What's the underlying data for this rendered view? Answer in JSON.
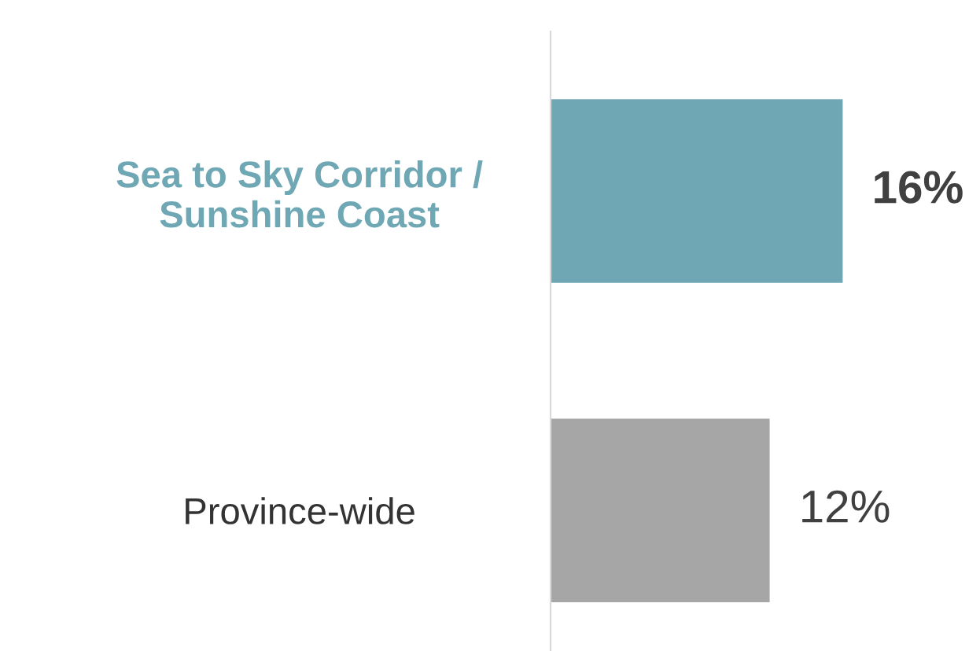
{
  "chart_data": {
    "type": "bar",
    "orientation": "horizontal",
    "categories": [
      "Sea to Sky Corridor /\nSunshine Coast",
      "Province-wide"
    ],
    "values": [
      16,
      12
    ],
    "colors": [
      "#6fa8b4",
      "#a6a6a6"
    ],
    "value_labels": [
      "16%",
      "12%"
    ],
    "grid": false,
    "legend": false
  }
}
